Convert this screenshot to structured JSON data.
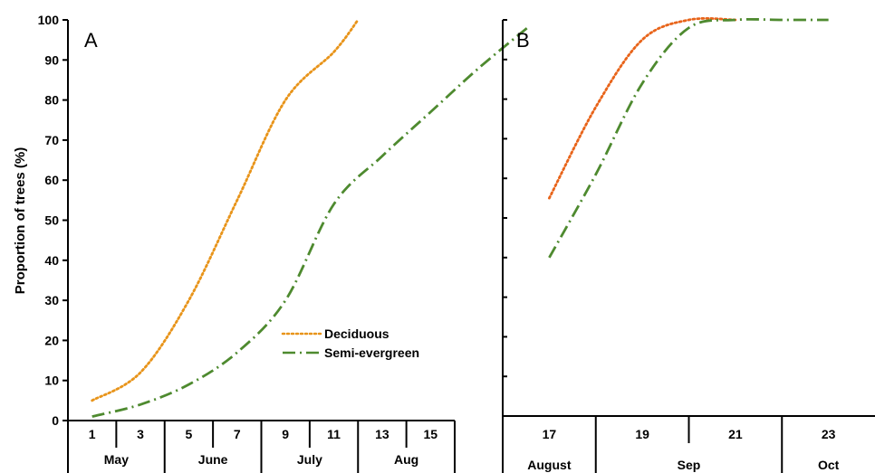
{
  "chart_data": [
    {
      "type": "line",
      "panel_label": "A",
      "ylabel": "Proportion of trees (%)",
      "ylim": [
        0,
        100
      ],
      "yticks": [
        "0",
        "10",
        "20",
        "30",
        "40",
        "50",
        "60",
        "70",
        "80",
        "90",
        "100"
      ],
      "x_ticks": [
        "1",
        "3",
        "5",
        "7",
        "9",
        "11",
        "13",
        "15"
      ],
      "month_labels": [
        "May",
        "June",
        "July",
        "Aug"
      ],
      "legend": {
        "placement": "center-right",
        "entries": [
          "Deciduous",
          "Semi-evergreen"
        ]
      },
      "series": [
        {
          "name": "Deciduous",
          "color": "#e8941a",
          "style": "dotted",
          "points": [
            [
              0.5,
              5
            ],
            [
              1.5,
              12
            ],
            [
              2.5,
              30
            ],
            [
              3.5,
              55
            ],
            [
              4.5,
              80
            ],
            [
              5.5,
              92
            ],
            [
              6.0,
              100
            ]
          ]
        },
        {
          "name": "Semi-evergreen",
          "color": "#4e8a2f",
          "style": "dash-dot",
          "points": [
            [
              0.5,
              1
            ],
            [
              1.5,
              4
            ],
            [
              2.5,
              9
            ],
            [
              3.5,
              17
            ],
            [
              4.5,
              30
            ],
            [
              5.5,
              54
            ],
            [
              6.5,
              66
            ],
            [
              7.5,
              77
            ],
            [
              8.5,
              88
            ],
            [
              9.5,
              98
            ]
          ]
        }
      ]
    },
    {
      "type": "line",
      "panel_label": "B",
      "ylim": [
        0,
        100
      ],
      "x_ticks": [
        "17",
        "19",
        "21",
        "23"
      ],
      "month_labels": [
        "August",
        "Sep",
        "Oct"
      ],
      "series": [
        {
          "name": "Deciduous",
          "color": "#e8641a",
          "style": "dotted",
          "points": [
            [
              0.5,
              55
            ],
            [
              1.0,
              78
            ],
            [
              1.5,
              95
            ],
            [
              2.0,
              100
            ],
            [
              2.5,
              100
            ]
          ]
        },
        {
          "name": "Semi-evergreen",
          "color": "#4e8a2f",
          "style": "dash-dot",
          "points": [
            [
              0.5,
              40
            ],
            [
              1.0,
              61
            ],
            [
              1.5,
              84
            ],
            [
              2.0,
              98
            ],
            [
              2.5,
              100
            ],
            [
              3.0,
              100
            ],
            [
              3.5,
              100
            ]
          ]
        }
      ]
    }
  ]
}
